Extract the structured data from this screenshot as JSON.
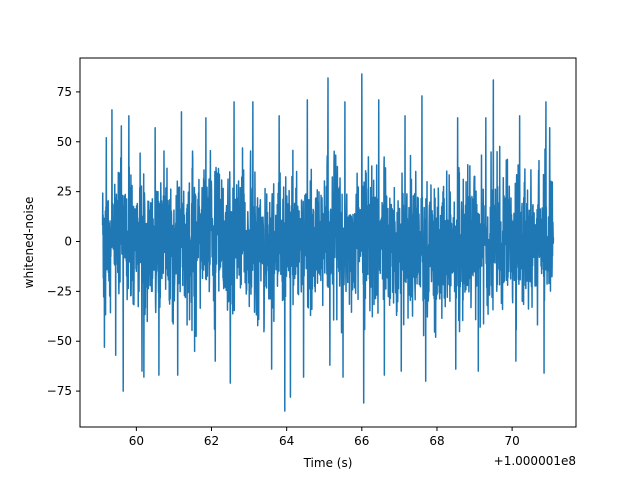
{
  "chart_data": {
    "type": "line",
    "title": "",
    "xlabel": "Time (s)",
    "ylabel": "whitened-noise",
    "x_offset_label": "+1.000001e8",
    "x_range": [
      59.1,
      71.1
    ],
    "xlim": [
      58.5,
      71.7
    ],
    "ylim": [
      -93,
      92
    ],
    "x_ticks": [
      60,
      62,
      64,
      66,
      68,
      70
    ],
    "x_tick_labels": [
      "60",
      "62",
      "64",
      "66",
      "68",
      "70"
    ],
    "y_ticks": [
      -75,
      -50,
      -25,
      0,
      25,
      50,
      75
    ],
    "y_tick_labels": [
      "−75",
      "−50",
      "−25",
      "0",
      "25",
      "50",
      "75"
    ],
    "grid": false,
    "legend": "none",
    "series": [
      {
        "color": "#1f77b4",
        "typical_band": [
          -40,
          40
        ],
        "noise_std": 17,
        "peaks": [
          {
            "x": 59.2,
            "y": 52
          },
          {
            "x": 59.35,
            "y": 66
          },
          {
            "x": 59.6,
            "y": 58
          },
          {
            "x": 59.8,
            "y": 63
          },
          {
            "x": 60.5,
            "y": 57
          },
          {
            "x": 61.2,
            "y": 65
          },
          {
            "x": 61.85,
            "y": 62
          },
          {
            "x": 62.6,
            "y": 70
          },
          {
            "x": 63.1,
            "y": 70
          },
          {
            "x": 63.8,
            "y": 63
          },
          {
            "x": 64.1,
            "y": 66
          },
          {
            "x": 64.55,
            "y": 71
          },
          {
            "x": 65.1,
            "y": 82
          },
          {
            "x": 65.55,
            "y": 70
          },
          {
            "x": 66.0,
            "y": 84
          },
          {
            "x": 66.45,
            "y": 71
          },
          {
            "x": 67.15,
            "y": 63
          },
          {
            "x": 67.6,
            "y": 73
          },
          {
            "x": 68.55,
            "y": 62
          },
          {
            "x": 69.3,
            "y": 62
          },
          {
            "x": 69.5,
            "y": 81
          },
          {
            "x": 70.2,
            "y": 63
          },
          {
            "x": 70.9,
            "y": 70
          },
          {
            "x": 71.0,
            "y": 57
          }
        ],
        "troughs": [
          {
            "x": 59.15,
            "y": -53
          },
          {
            "x": 59.45,
            "y": -57
          },
          {
            "x": 59.65,
            "y": -75
          },
          {
            "x": 60.15,
            "y": -65
          },
          {
            "x": 60.2,
            "y": -68
          },
          {
            "x": 60.6,
            "y": -67
          },
          {
            "x": 61.1,
            "y": -67
          },
          {
            "x": 61.55,
            "y": -55
          },
          {
            "x": 62.1,
            "y": -60
          },
          {
            "x": 62.5,
            "y": -71
          },
          {
            "x": 63.6,
            "y": -64
          },
          {
            "x": 63.95,
            "y": -85
          },
          {
            "x": 64.1,
            "y": -78
          },
          {
            "x": 64.45,
            "y": -68
          },
          {
            "x": 65.15,
            "y": -62
          },
          {
            "x": 65.5,
            "y": -68
          },
          {
            "x": 66.05,
            "y": -81
          },
          {
            "x": 66.6,
            "y": -67
          },
          {
            "x": 67.05,
            "y": -65
          },
          {
            "x": 67.7,
            "y": -70
          },
          {
            "x": 68.5,
            "y": -64
          },
          {
            "x": 69.1,
            "y": -65
          },
          {
            "x": 70.1,
            "y": -60
          },
          {
            "x": 70.85,
            "y": -66
          }
        ]
      }
    ]
  }
}
